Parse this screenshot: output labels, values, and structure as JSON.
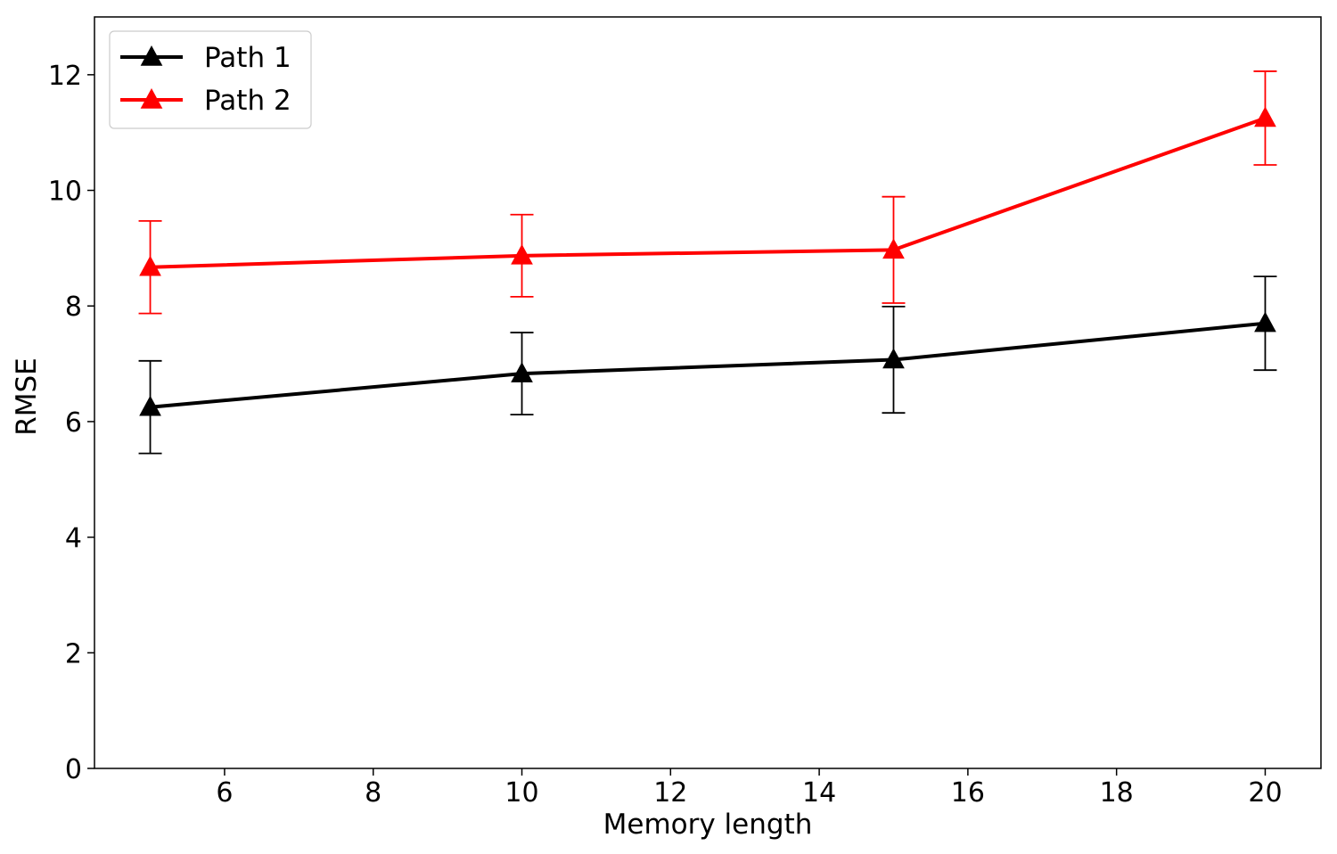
{
  "chart_data": {
    "type": "line",
    "title": "",
    "xlabel": "Memory length",
    "ylabel": "RMSE",
    "xlim": [
      4.25,
      20.75
    ],
    "ylim": [
      0,
      13
    ],
    "xticks": [
      6,
      8,
      10,
      12,
      14,
      16,
      18,
      20
    ],
    "yticks": [
      0,
      2,
      4,
      6,
      8,
      10,
      12
    ],
    "x": [
      5,
      10,
      15,
      20
    ],
    "grid": false,
    "legend_position": "top-left",
    "series": [
      {
        "name": "Path 1",
        "color": "#000000",
        "marker": "triangle-up",
        "values": [
          6.25,
          6.83,
          7.07,
          7.7
        ],
        "error": [
          0.8,
          0.71,
          0.92,
          0.81
        ]
      },
      {
        "name": "Path 2",
        "color": "#ff0000",
        "marker": "triangle-up",
        "values": [
          8.67,
          8.87,
          8.97,
          11.25
        ],
        "error": [
          0.8,
          0.71,
          0.92,
          0.81
        ]
      }
    ]
  }
}
